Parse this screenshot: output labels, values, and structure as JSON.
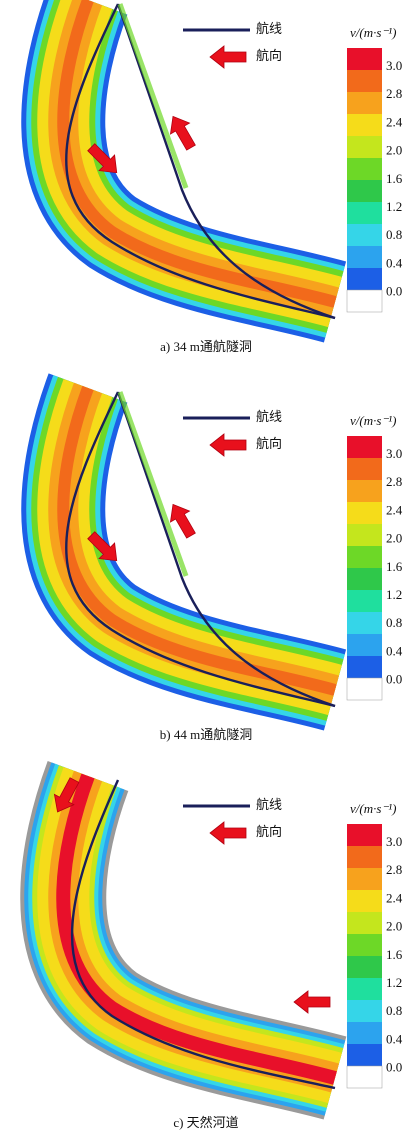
{
  "panels": [
    {
      "caption": "a) 34 m通航隧洞",
      "legend": {
        "route": "航线",
        "direction": "航向"
      },
      "colorbar": {
        "title": "v/(m·s⁻¹)",
        "labels": [
          "3.0",
          "2.8",
          "2.4",
          "2.0",
          "1.6",
          "1.2",
          "0.8",
          "0.4",
          "0.0"
        ]
      }
    },
    {
      "caption": "b) 44 m通航隧洞",
      "legend": {
        "route": "航线",
        "direction": "航向"
      },
      "colorbar": {
        "title": "v/(m·s⁻¹)",
        "labels": [
          "3.0",
          "2.8",
          "2.4",
          "2.0",
          "1.6",
          "1.2",
          "0.8",
          "0.4",
          "0.0"
        ]
      }
    },
    {
      "caption": "c) 天然河道",
      "legend": {
        "route": "航线",
        "direction": "航向"
      },
      "colorbar": {
        "title": "v/(m·s⁻¹)",
        "labels": [
          "3.0",
          "2.8",
          "2.4",
          "2.0",
          "1.6",
          "1.2",
          "0.8",
          "0.4",
          "0.0"
        ]
      }
    }
  ]
}
